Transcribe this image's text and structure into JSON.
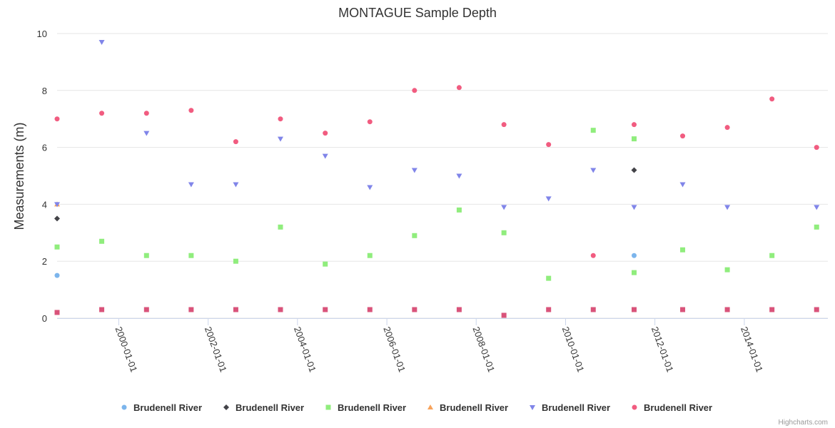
{
  "chart_data": {
    "type": "scatter",
    "title": "MONTAGUE Sample Depth",
    "xlabel": "",
    "ylabel": "Measurements (m)",
    "ylim": [
      0,
      10
    ],
    "yticks": [
      "0",
      "2",
      "4",
      "6",
      "8",
      "10"
    ],
    "xlim": [
      "1998-08-15",
      "2015-11-15"
    ],
    "xticks": [
      "2000-01-01",
      "2002-01-01",
      "2004-01-01",
      "2006-01-01",
      "2008-01-01",
      "2010-01-01",
      "2012-01-01",
      "2014-01-01"
    ],
    "grid": "horizontal",
    "legend_position": "bottom-center",
    "credits": "Highcharts.com",
    "series": [
      {
        "name": "Brudenell River",
        "color": "#7cb5ec",
        "symbol": "circle",
        "points": [
          [
            "1998-08-15",
            1.5
          ],
          [
            "2011-07-15",
            2.2
          ]
        ]
      },
      {
        "name": "Brudenell River",
        "color": "#434348",
        "symbol": "diamond",
        "points": [
          [
            "1998-08-15",
            3.5
          ],
          [
            "2011-07-15",
            5.2
          ]
        ]
      },
      {
        "name": "Brudenell River",
        "color": "#90ed7d",
        "symbol": "square",
        "points": [
          [
            "1998-08-15",
            2.5
          ],
          [
            "1999-08-15",
            2.7
          ],
          [
            "2000-08-15",
            2.2
          ],
          [
            "2001-08-15",
            2.2
          ],
          [
            "2002-08-15",
            2.0
          ],
          [
            "2003-08-15",
            3.2
          ],
          [
            "2004-08-15",
            1.9
          ],
          [
            "2005-08-15",
            2.2
          ],
          [
            "2006-08-15",
            2.9
          ],
          [
            "2007-08-15",
            3.8
          ],
          [
            "2008-08-15",
            3.0
          ],
          [
            "2009-08-15",
            1.4
          ],
          [
            "2010-08-15",
            6.6
          ],
          [
            "2011-07-15",
            6.3
          ],
          [
            "2011-07-15",
            1.6
          ],
          [
            "2011-07-15",
            0.3
          ],
          [
            "2012-08-15",
            2.4
          ],
          [
            "2013-08-15",
            1.7
          ],
          [
            "2014-08-15",
            2.2
          ],
          [
            "2015-08-15",
            3.2
          ]
        ]
      },
      {
        "name": "Brudenell River",
        "color": "#f7a35c",
        "symbol": "triangle",
        "points": [
          [
            "1998-08-15",
            4.0
          ]
        ]
      },
      {
        "name": "Brudenell River",
        "color": "#8085e9",
        "symbol": "triangle-down",
        "points": [
          [
            "1998-08-15",
            4.0
          ],
          [
            "1999-08-15",
            9.7
          ],
          [
            "2000-08-15",
            6.5
          ],
          [
            "2001-08-15",
            4.7
          ],
          [
            "2002-08-15",
            4.7
          ],
          [
            "2003-08-15",
            6.3
          ],
          [
            "2004-08-15",
            5.7
          ],
          [
            "2005-08-15",
            4.6
          ],
          [
            "2006-08-15",
            5.2
          ],
          [
            "2007-08-15",
            5.0
          ],
          [
            "2008-08-15",
            3.9
          ],
          [
            "2009-08-15",
            4.2
          ],
          [
            "2010-08-15",
            5.2
          ],
          [
            "2011-07-15",
            3.9
          ],
          [
            "2012-08-15",
            4.7
          ],
          [
            "2013-08-15",
            3.9
          ],
          [
            "2015-08-15",
            3.9
          ]
        ]
      },
      {
        "name": "Brudenell River",
        "color": "#f15c80",
        "symbol": "circle",
        "points": [
          [
            "1998-08-15",
            7.0
          ],
          [
            "1999-08-15",
            7.2
          ],
          [
            "2000-08-15",
            7.2
          ],
          [
            "2001-08-15",
            7.3
          ],
          [
            "2002-08-15",
            6.2
          ],
          [
            "2003-08-15",
            7.0
          ],
          [
            "2004-08-15",
            6.5
          ],
          [
            "2005-08-15",
            6.9
          ],
          [
            "2006-08-15",
            8.0
          ],
          [
            "2007-08-15",
            8.1
          ],
          [
            "2008-08-15",
            6.8
          ],
          [
            "2009-08-15",
            6.1
          ],
          [
            "2010-08-15",
            2.2
          ],
          [
            "2011-07-15",
            6.8
          ],
          [
            "2012-08-15",
            6.4
          ],
          [
            "2013-08-15",
            6.7
          ],
          [
            "2014-08-15",
            7.7
          ],
          [
            "2015-08-15",
            6.0
          ]
        ]
      }
    ],
    "extra_marks": {
      "color": "#d9537a",
      "symbol": "square",
      "points": [
        [
          "1998-08-15",
          0.2
        ],
        [
          "1999-08-15",
          0.3
        ],
        [
          "2000-08-15",
          0.3
        ],
        [
          "2001-08-15",
          0.3
        ],
        [
          "2002-08-15",
          0.3
        ],
        [
          "2003-08-15",
          0.3
        ],
        [
          "2004-08-15",
          0.3
        ],
        [
          "2005-08-15",
          0.3
        ],
        [
          "2006-08-15",
          0.3
        ],
        [
          "2007-08-15",
          0.3
        ],
        [
          "2008-08-15",
          0.1
        ],
        [
          "2009-08-15",
          0.3
        ],
        [
          "2010-08-15",
          0.3
        ],
        [
          "2011-07-15",
          0.3
        ],
        [
          "2012-08-15",
          0.3
        ],
        [
          "2013-08-15",
          0.3
        ],
        [
          "2014-08-15",
          0.3
        ],
        [
          "2015-08-15",
          0.3
        ]
      ]
    }
  }
}
